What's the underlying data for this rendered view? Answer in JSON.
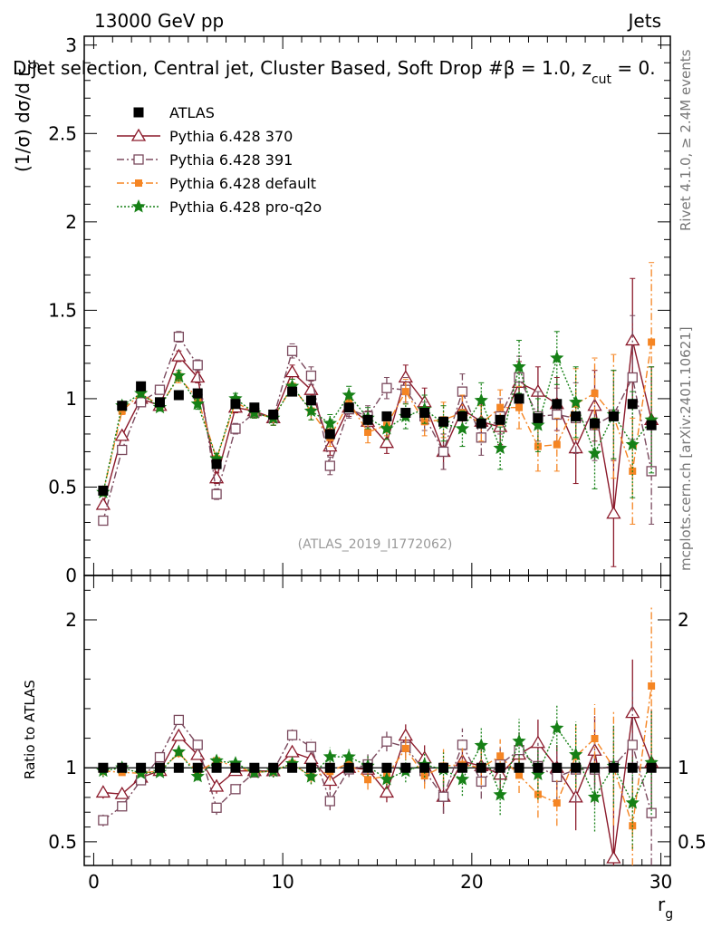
{
  "header": {
    "energy_label": "13000 GeV pp",
    "category_label": "Jets",
    "selection_title": "Dijet selection, Central jet, Cluster Based, Soft Drop #β = 1.0, z",
    "selection_sub": "cut",
    "selection_tail": " = 0.",
    "analysis_id": "(ATLAS_2019_I1772062)",
    "side_rivet": "Rivet 4.1.0, ≥ 2.4M events",
    "side_mcplots": "mcplots.cern.ch [arXiv:2401.10621]"
  },
  "colors": {
    "ATLAS": "#000000",
    "Pythia 6.428 370": "#8b1a2b",
    "Pythia 6.428 391": "#7b4a5e",
    "Pythia 6.428 default": "#f58523",
    "Pythia 6.428 pro-q2o": "#168016"
  },
  "chart_data": [
    {
      "type": "scatter",
      "title": "Dijet selection, Central jet, Cluster Based, Soft Drop #β = 1.0, z_cut = 0.",
      "xlabel": "r_g",
      "ylabel": "(1/σ) dσ/d r_g",
      "xlim": [
        -0.5,
        30.5
      ],
      "ylim": [
        0,
        3.05
      ],
      "yticks": [
        "0",
        "0.5",
        "1",
        "1.5",
        "2",
        "2.5",
        "3"
      ],
      "xticks": [
        "0",
        "10",
        "20",
        "30"
      ],
      "legend": "top-left",
      "x": [
        0.5,
        1.5,
        2.5,
        3.5,
        4.5,
        5.5,
        6.5,
        7.5,
        8.5,
        9.5,
        10.5,
        11.5,
        12.5,
        13.5,
        14.5,
        15.5,
        16.5,
        17.5,
        18.5,
        19.5,
        20.5,
        21.5,
        22.5,
        23.5,
        24.5,
        25.5,
        26.5,
        27.5,
        28.5,
        29.5
      ],
      "series": [
        {
          "name": "ATLAS",
          "marker": "filled-square",
          "values": [
            0.48,
            0.96,
            1.07,
            0.98,
            1.02,
            1.03,
            0.63,
            0.97,
            0.95,
            0.91,
            1.04,
            0.99,
            0.8,
            0.95,
            0.88,
            0.9,
            0.92,
            0.92,
            0.87,
            0.9,
            0.86,
            0.88,
            1.0,
            0.89,
            0.97,
            0.9,
            0.86,
            0.9,
            0.97,
            0.85
          ],
          "errors": [
            0.01,
            0.01,
            0.01,
            0.01,
            0.01,
            0.01,
            0.02,
            0.02,
            0.02,
            0.02,
            0.02,
            0.02,
            0.02,
            0.02,
            0.02,
            0.02,
            0.02,
            0.02,
            0.02,
            0.02,
            0.02,
            0.02,
            0.02,
            0.02,
            0.02,
            0.02,
            0.02,
            0.02,
            0.02,
            0.02
          ]
        },
        {
          "name": "Pythia 6.428 370",
          "marker": "open-triangle",
          "line": "solid",
          "values": [
            0.4,
            0.79,
            1.0,
            0.96,
            1.24,
            1.12,
            0.55,
            0.95,
            0.93,
            0.89,
            1.15,
            1.05,
            0.73,
            0.95,
            0.87,
            0.75,
            1.12,
            0.98,
            0.7,
            0.94,
            0.87,
            0.84,
            1.09,
            1.04,
            0.97,
            0.72,
            0.96,
            0.35,
            1.33,
            0.88
          ],
          "errors": [
            0.02,
            0.02,
            0.02,
            0.02,
            0.03,
            0.03,
            0.03,
            0.03,
            0.03,
            0.04,
            0.04,
            0.05,
            0.05,
            0.05,
            0.06,
            0.06,
            0.07,
            0.08,
            0.1,
            0.1,
            0.1,
            0.1,
            0.12,
            0.14,
            0.15,
            0.2,
            0.2,
            0.3,
            0.35,
            0.3
          ]
        },
        {
          "name": "Pythia 6.428 391",
          "marker": "open-square",
          "line": "dashdot",
          "values": [
            0.31,
            0.71,
            0.98,
            1.05,
            1.35,
            1.19,
            0.46,
            0.83,
            0.92,
            0.89,
            1.27,
            1.13,
            0.62,
            0.94,
            0.9,
            1.06,
            1.05,
            0.9,
            0.7,
            1.04,
            0.78,
            0.9,
            1.12,
            0.9,
            0.91,
            0.89,
            0.85,
            0.91,
            1.12,
            0.59
          ],
          "errors": [
            0.02,
            0.02,
            0.02,
            0.02,
            0.03,
            0.03,
            0.03,
            0.03,
            0.03,
            0.04,
            0.04,
            0.05,
            0.05,
            0.05,
            0.06,
            0.06,
            0.07,
            0.08,
            0.1,
            0.1,
            0.1,
            0.1,
            0.12,
            0.14,
            0.15,
            0.2,
            0.2,
            0.25,
            0.35,
            0.3
          ]
        },
        {
          "name": "Pythia 6.428 default",
          "marker": "filled-square-small",
          "line": "dashdot",
          "values": [
            0.47,
            0.93,
            1.03,
            0.96,
            1.12,
            1.0,
            0.66,
            0.98,
            0.92,
            0.89,
            1.07,
            0.93,
            0.78,
            0.98,
            0.81,
            0.85,
            1.04,
            0.87,
            0.88,
            0.92,
            0.86,
            0.95,
            0.95,
            0.73,
            0.74,
            0.97,
            1.03,
            0.9,
            0.59,
            1.32
          ],
          "errors": [
            0.02,
            0.02,
            0.02,
            0.02,
            0.03,
            0.03,
            0.03,
            0.03,
            0.03,
            0.04,
            0.04,
            0.05,
            0.05,
            0.05,
            0.06,
            0.06,
            0.07,
            0.08,
            0.1,
            0.1,
            0.1,
            0.1,
            0.12,
            0.14,
            0.15,
            0.2,
            0.2,
            0.35,
            0.3,
            0.45
          ]
        },
        {
          "name": "Pythia 6.428 pro-q2o",
          "marker": "open-star",
          "line": "dotted",
          "values": [
            0.47,
            0.96,
            1.03,
            0.95,
            1.13,
            0.97,
            0.66,
            1.0,
            0.92,
            0.89,
            1.07,
            0.93,
            0.86,
            1.02,
            0.89,
            0.83,
            0.9,
            0.94,
            0.86,
            0.83,
            0.99,
            0.72,
            1.18,
            0.85,
            1.23,
            0.98,
            0.69,
            0.91,
            0.74,
            0.88
          ],
          "errors": [
            0.02,
            0.02,
            0.02,
            0.02,
            0.03,
            0.03,
            0.03,
            0.03,
            0.03,
            0.04,
            0.04,
            0.05,
            0.05,
            0.05,
            0.06,
            0.06,
            0.07,
            0.08,
            0.1,
            0.1,
            0.1,
            0.12,
            0.15,
            0.15,
            0.15,
            0.2,
            0.2,
            0.25,
            0.3,
            0.3
          ]
        }
      ]
    },
    {
      "type": "scatter",
      "title": "",
      "xlabel": "r_g",
      "ylabel": "Ratio to ATLAS",
      "xlim": [
        -0.5,
        30.5
      ],
      "ylim": [
        0.34,
        2.3
      ],
      "yticks": [
        "0.5",
        "1",
        "2"
      ],
      "xticks": [
        "0",
        "10",
        "20",
        "30"
      ],
      "reference_line": 1
    }
  ],
  "legend": {
    "entries": [
      "ATLAS",
      "Pythia 6.428 370",
      "Pythia 6.428 391",
      "Pythia 6.428 default",
      "Pythia 6.428 pro-q2o"
    ]
  },
  "axes": {
    "x_label_main": "r",
    "x_label_sub": "g",
    "y_label_main": "(1/σ) dσ/d r",
    "y_label_sub": "g",
    "ratio_label": "Ratio to ATLAS"
  }
}
